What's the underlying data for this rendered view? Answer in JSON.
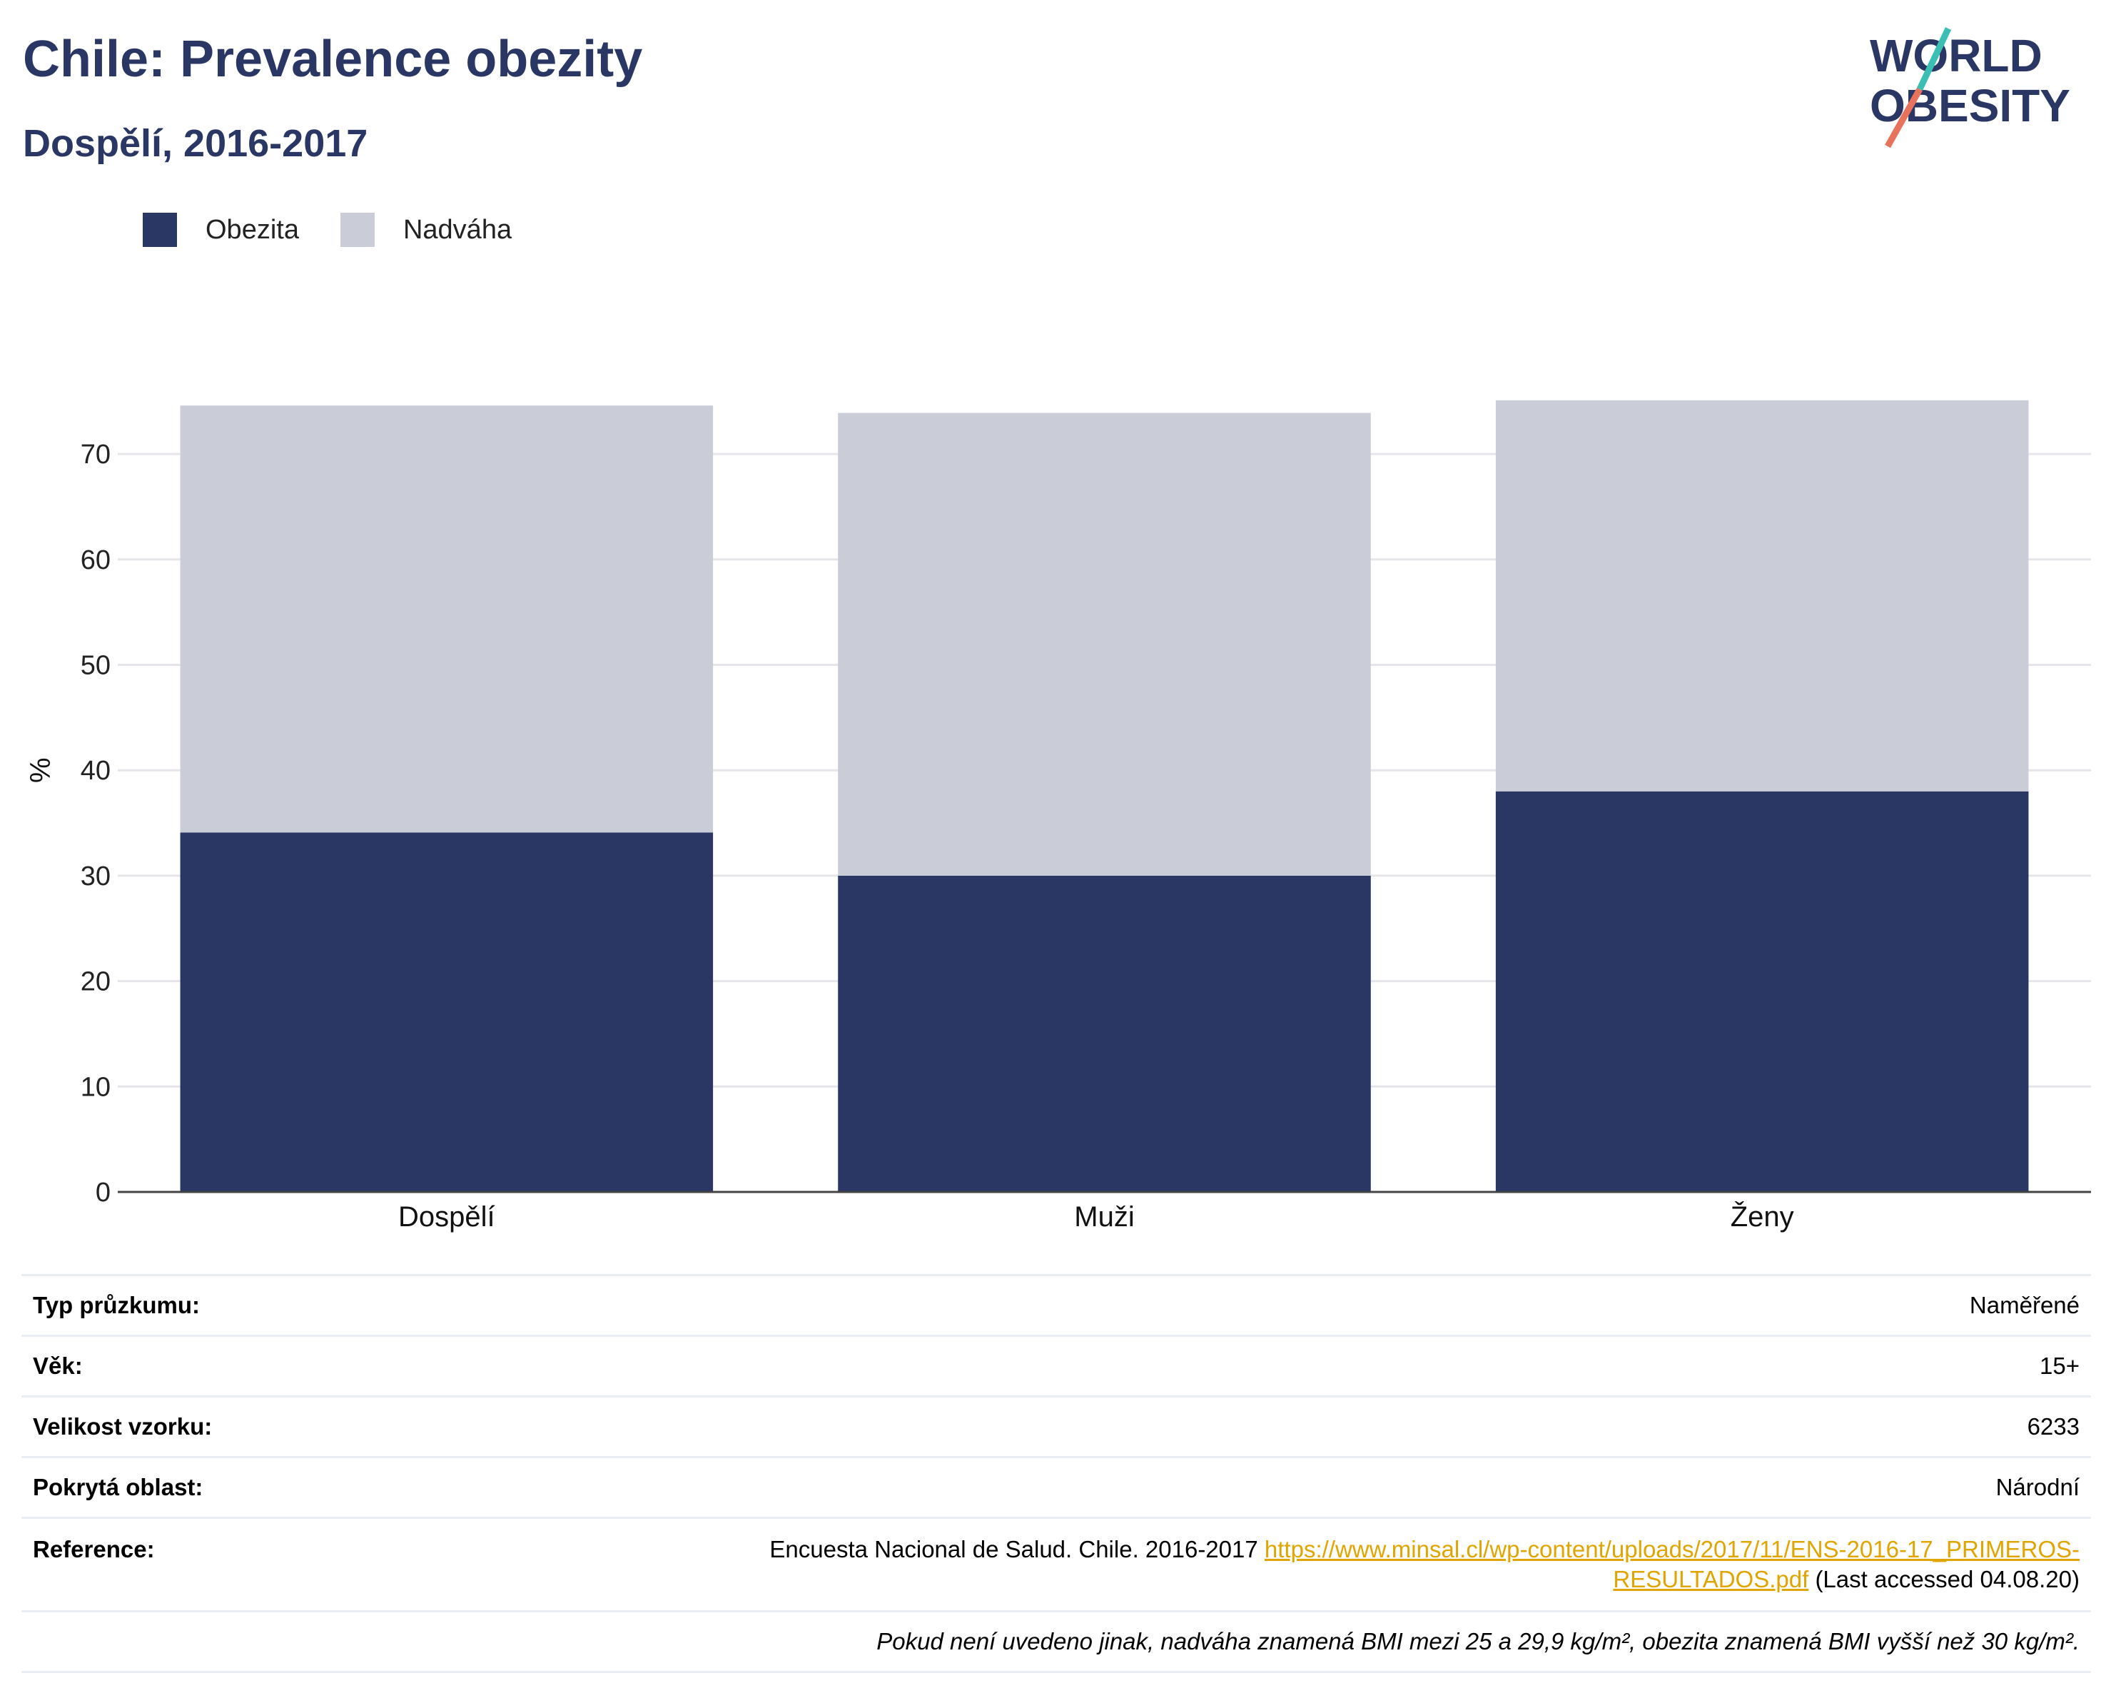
{
  "header": {
    "title": "Chile: Prevalence obezity",
    "subtitle": "Dospělí, 2016-2017"
  },
  "logo": {
    "line1": "WORLD",
    "line2": "OBESITY"
  },
  "colors": {
    "obesity": "#2a3663",
    "overweight": "#caccd8",
    "accent_teal": "#3bbfb5",
    "accent_coral": "#e8735d",
    "link": "#e0a500"
  },
  "chart_data": {
    "type": "bar",
    "stacked": true,
    "categories": [
      "Dospělí",
      "Muži",
      "Ženy"
    ],
    "series": [
      {
        "name": "Obezita",
        "values": [
          34.1,
          30.0,
          38.0
        ]
      },
      {
        "name": "Nadváha",
        "values": [
          40.5,
          43.9,
          37.1
        ]
      }
    ],
    "ylabel": "%",
    "ylim": [
      0,
      75
    ],
    "yticks": [
      0,
      10,
      20,
      30,
      40,
      50,
      60,
      70
    ],
    "grid": true,
    "legend_position": "top-left"
  },
  "info": {
    "rows": [
      {
        "label": "Typ průzkumu:",
        "value": "Naměřené"
      },
      {
        "label": "Věk:",
        "value": "15+"
      },
      {
        "label": "Velikost vzorku:",
        "value": "6233"
      },
      {
        "label": "Pokrytá oblast:",
        "value": "Národní"
      }
    ],
    "reference_label": "Reference:",
    "reference_text": "Encuesta Nacional de Salud. Chile. 2016-2017",
    "reference_link_line1": "https://www.minsal.cl/wp-content/uploads/2017/11/ENS-2016-17_PRIMEROS-",
    "reference_link_line2": "RESULTADOS.pdf",
    "reference_accessed": "(Last accessed 04.08.20)",
    "footnote": "Pokud není uvedeno jinak, nadváha znamená BMI mezi 25 a 29,9 kg/m², obezita znamená BMI vyšší než 30 kg/m²."
  }
}
